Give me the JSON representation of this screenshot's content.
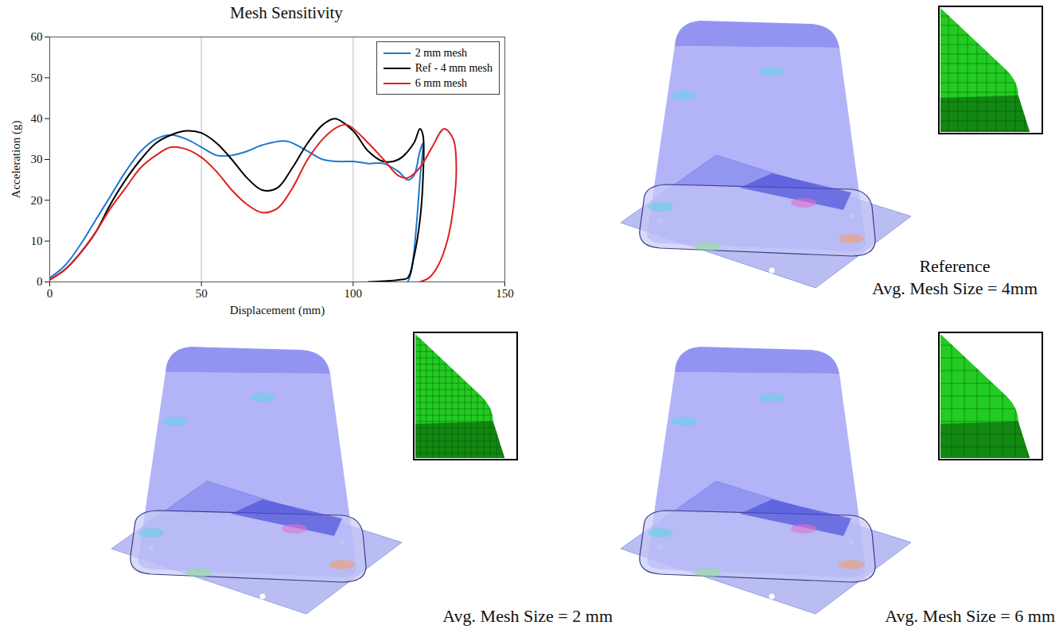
{
  "chart_data": {
    "type": "line",
    "title": "Mesh Sensitivity",
    "x_label": "Displacement (mm)",
    "y_label": "Acceleration (g)",
    "xlim": [
      0,
      150
    ],
    "xticks": [
      0,
      50,
      100,
      150
    ],
    "ylim": [
      0,
      60
    ],
    "yticks": [
      0,
      10,
      20,
      30,
      40,
      50,
      60
    ],
    "grid": "x",
    "legend": "top-right",
    "series": [
      {
        "name": "2 mm mesh",
        "color": "#1f77d0",
        "x": [
          0,
          5,
          10,
          15,
          20,
          25,
          30,
          35,
          40,
          45,
          50,
          55,
          60,
          65,
          70,
          78,
          85,
          90,
          95,
          100,
          105,
          110,
          115,
          118,
          120,
          122,
          123,
          122,
          121,
          120,
          119,
          118
        ],
        "values": [
          1,
          4,
          9,
          15,
          21,
          27,
          32,
          35,
          36,
          35,
          33,
          31,
          31,
          32,
          33.5,
          34.5,
          32,
          30,
          29.5,
          29.5,
          29,
          29,
          27,
          25,
          26,
          32,
          34,
          25,
          15,
          7,
          2,
          0
        ]
      },
      {
        "name": "Ref - 4 mm mesh",
        "color": "#000000",
        "x": [
          0,
          5,
          10,
          15,
          20,
          25,
          30,
          35,
          40,
          45,
          50,
          55,
          60,
          65,
          70,
          75,
          80,
          85,
          90,
          94,
          100,
          105,
          110,
          115,
          120,
          122,
          123,
          123,
          122,
          120,
          118,
          115,
          110,
          105
        ],
        "values": [
          0.5,
          3,
          7,
          12,
          19,
          25,
          30,
          34,
          36,
          37,
          36.5,
          34,
          30,
          25.5,
          22.5,
          23,
          28,
          34,
          38.5,
          40,
          37,
          32,
          29.5,
          30,
          34,
          37.5,
          36,
          25,
          15,
          6,
          1,
          0.5,
          0.2,
          0
        ]
      },
      {
        "name": "6 mm mesh",
        "color": "#e02020",
        "x": [
          0,
          5,
          10,
          15,
          20,
          25,
          30,
          35,
          40,
          45,
          50,
          55,
          60,
          65,
          70,
          75,
          80,
          85,
          90,
          95,
          98,
          105,
          110,
          115,
          118,
          122,
          126,
          130,
          133,
          134,
          133,
          131,
          128,
          125,
          122
        ],
        "values": [
          0.5,
          3,
          7,
          12,
          18,
          23,
          28,
          31,
          33,
          32.5,
          30.5,
          27,
          22.5,
          19,
          17,
          18,
          23,
          30,
          35,
          38,
          38.5,
          34,
          30,
          26,
          25.5,
          28,
          33,
          37.5,
          35,
          28,
          18,
          10,
          4,
          1,
          0
        ]
      }
    ]
  },
  "renders": [
    {
      "caption": [
        "Reference",
        "Avg. Mesh Size = 4mm"
      ]
    },
    {
      "caption": [
        "Avg. Mesh Size = 2 mm"
      ]
    },
    {
      "caption": [
        "Avg. Mesh Size = 6 mm"
      ]
    }
  ]
}
